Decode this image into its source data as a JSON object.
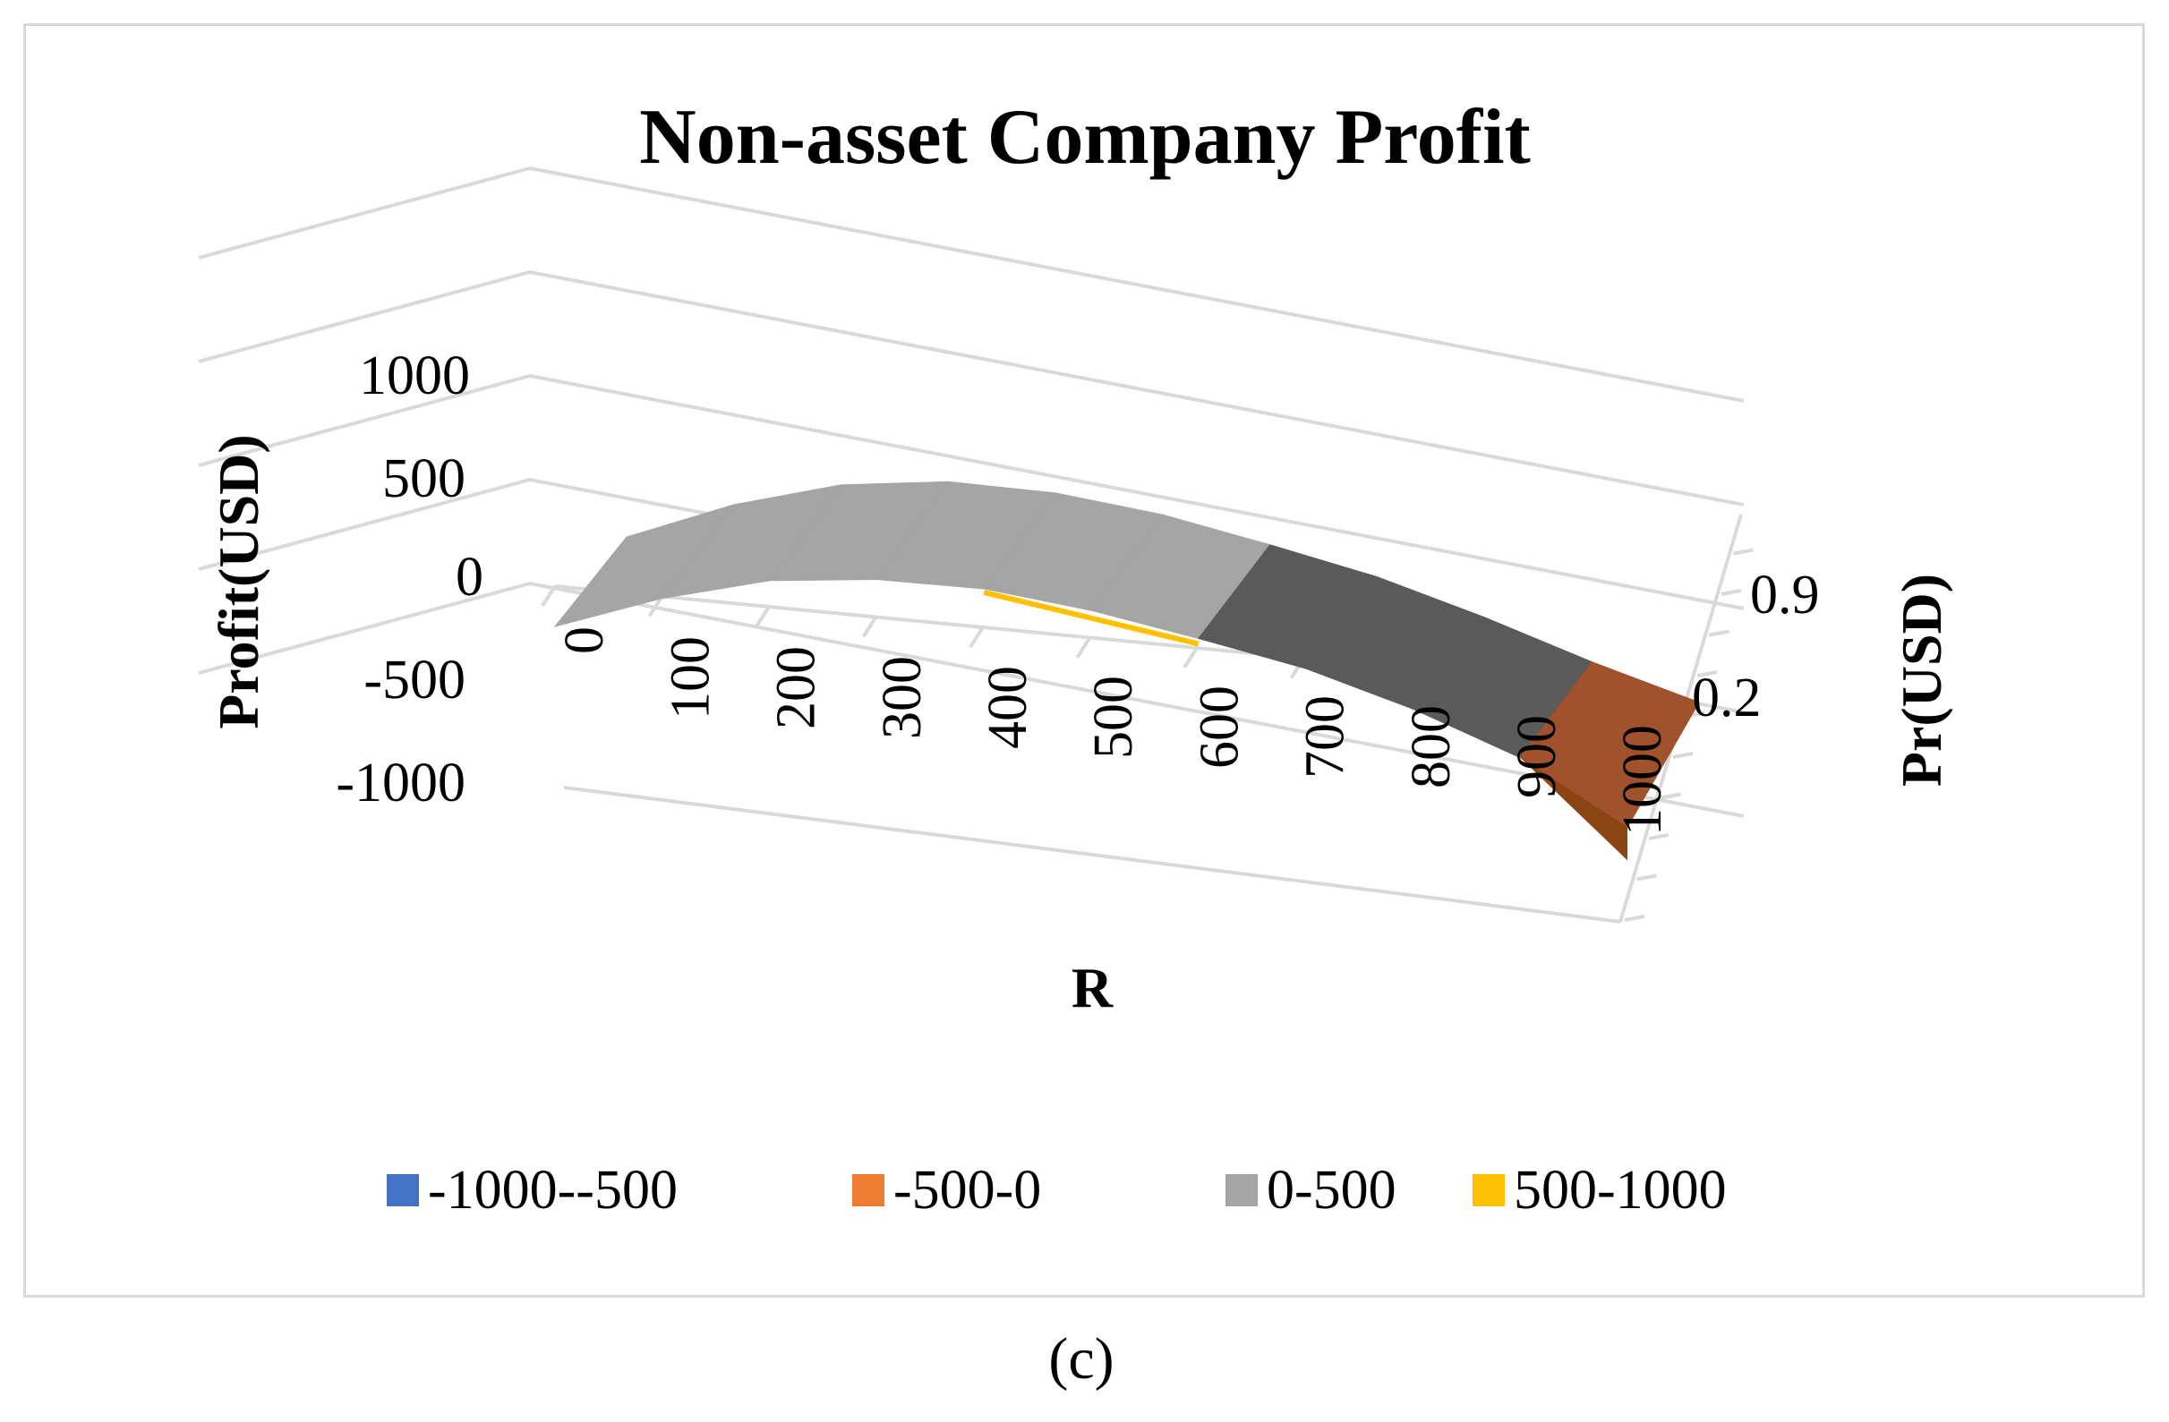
{
  "chart_data": {
    "type": "surface",
    "title": "Non-asset Company Profit",
    "xlabel": "R",
    "ylabel": "Pr(USD)",
    "zlabel": "Profit(USD)",
    "x_ticks": [
      "0",
      "100",
      "200",
      "300",
      "400",
      "500",
      "600",
      "700",
      "800",
      "900",
      "1000"
    ],
    "y_ticks": [
      "0.2",
      "0.9"
    ],
    "z_ticks": [
      "1000",
      "500",
      "0",
      "-500",
      "-1000"
    ],
    "zlim": [
      -1000,
      1000
    ],
    "profit_front_edge": [
      0,
      200,
      350,
      420,
      440,
      400,
      330,
      250,
      120,
      -50,
      -320
    ],
    "profit_back_edge": [
      0,
      220,
      380,
      460,
      470,
      430,
      350,
      260,
      130,
      -20,
      -150
    ],
    "legend": [
      {
        "label": "-1000--500",
        "color": "#4472c4"
      },
      {
        "label": "-500-0",
        "color": "#ed7d31"
      },
      {
        "label": "0-500",
        "color": "#a5a5a5"
      },
      {
        "label": "500-1000",
        "color": "#ffc000"
      }
    ]
  },
  "caption": "(c)"
}
